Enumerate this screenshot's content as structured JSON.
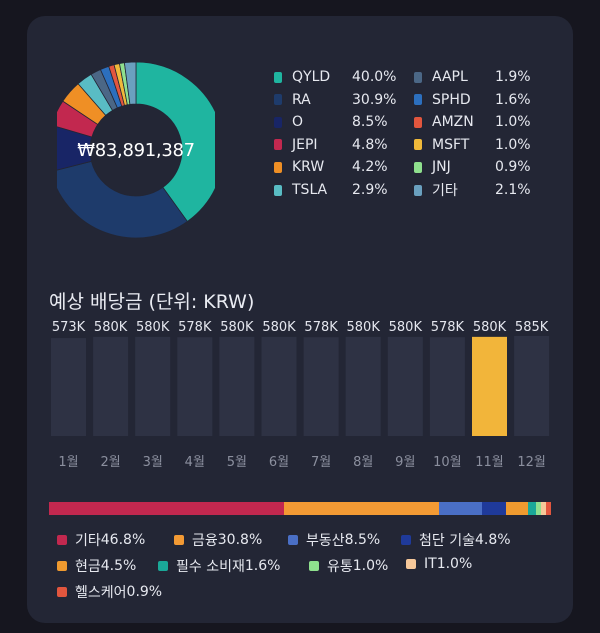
{
  "portfolio": {
    "total_value": "₩83,891,387",
    "holdings": [
      {
        "name": "QYLD",
        "pct": "40.0%",
        "value": 40.0,
        "color": "#1fb5a0"
      },
      {
        "name": "RA",
        "pct": "30.9%",
        "value": 30.9,
        "color": "#1e3b6b"
      },
      {
        "name": "O",
        "pct": "8.5%",
        "value": 8.5,
        "color": "#182566"
      },
      {
        "name": "JEPI",
        "pct": "4.8%",
        "value": 4.8,
        "color": "#c2284f"
      },
      {
        "name": "KRW",
        "pct": "4.2%",
        "value": 4.2,
        "color": "#ef8f25"
      },
      {
        "name": "TSLA",
        "pct": "2.9%",
        "value": 2.9,
        "color": "#59bcc4"
      },
      {
        "name": "AAPL",
        "pct": "1.9%",
        "value": 1.9,
        "color": "#4b6786"
      },
      {
        "name": "SPHD",
        "pct": "1.6%",
        "value": 1.6,
        "color": "#2c6fbe"
      },
      {
        "name": "AMZN",
        "pct": "1.0%",
        "value": 1.0,
        "color": "#e2563e"
      },
      {
        "name": "MSFT",
        "pct": "1.0%",
        "value": 1.0,
        "color": "#f0b93a"
      },
      {
        "name": "JNJ",
        "pct": "0.9%",
        "value": 0.9,
        "color": "#8fe08e"
      },
      {
        "name": "기타",
        "pct": "2.1%",
        "value": 2.1,
        "color": "#6aa0bf"
      }
    ]
  },
  "dividends": {
    "title": "예상 배당금 (단위: KRW)",
    "chart_data": {
      "type": "bar",
      "categories": [
        "1월",
        "2월",
        "3월",
        "4월",
        "5월",
        "6월",
        "7월",
        "8월",
        "9월",
        "10월",
        "11월",
        "12월"
      ],
      "values": [
        573,
        580,
        580,
        578,
        580,
        580,
        578,
        580,
        580,
        578,
        580,
        585
      ],
      "labels": [
        "573K",
        "580K",
        "580K",
        "578K",
        "580K",
        "580K",
        "578K",
        "580K",
        "580K",
        "578K",
        "580K",
        "585K"
      ],
      "highlight_index": 10,
      "bar_color": "#2e3244",
      "highlight_color": "#f2b53a",
      "label_color": "#e4e6ee",
      "tick_color": "#8b8f9e"
    }
  },
  "sectors": [
    {
      "name": "기타",
      "pct": "46.8%",
      "value": 46.8,
      "color": "#c2284f"
    },
    {
      "name": "금융",
      "pct": "30.8%",
      "value": 30.8,
      "color": "#f39a34"
    },
    {
      "name": "부동산",
      "pct": "8.5%",
      "value": 8.5,
      "color": "#4a6fc6"
    },
    {
      "name": "첨단 기술",
      "pct": "4.8%",
      "value": 4.8,
      "color": "#1f3a9a"
    },
    {
      "name": "현금",
      "pct": "4.5%",
      "value": 4.5,
      "color": "#ef9a2f"
    },
    {
      "name": "필수 소비재",
      "pct": "1.6%",
      "value": 1.6,
      "color": "#1aa898"
    },
    {
      "name": "유통",
      "pct": "1.0%",
      "value": 1.0,
      "color": "#8fe08e"
    },
    {
      "name": "IT",
      "pct": "1.0%",
      "value": 1.0,
      "color": "#f6c89a"
    },
    {
      "name": "헬스케어",
      "pct": "0.9%",
      "value": 0.9,
      "color": "#e2563e"
    }
  ]
}
